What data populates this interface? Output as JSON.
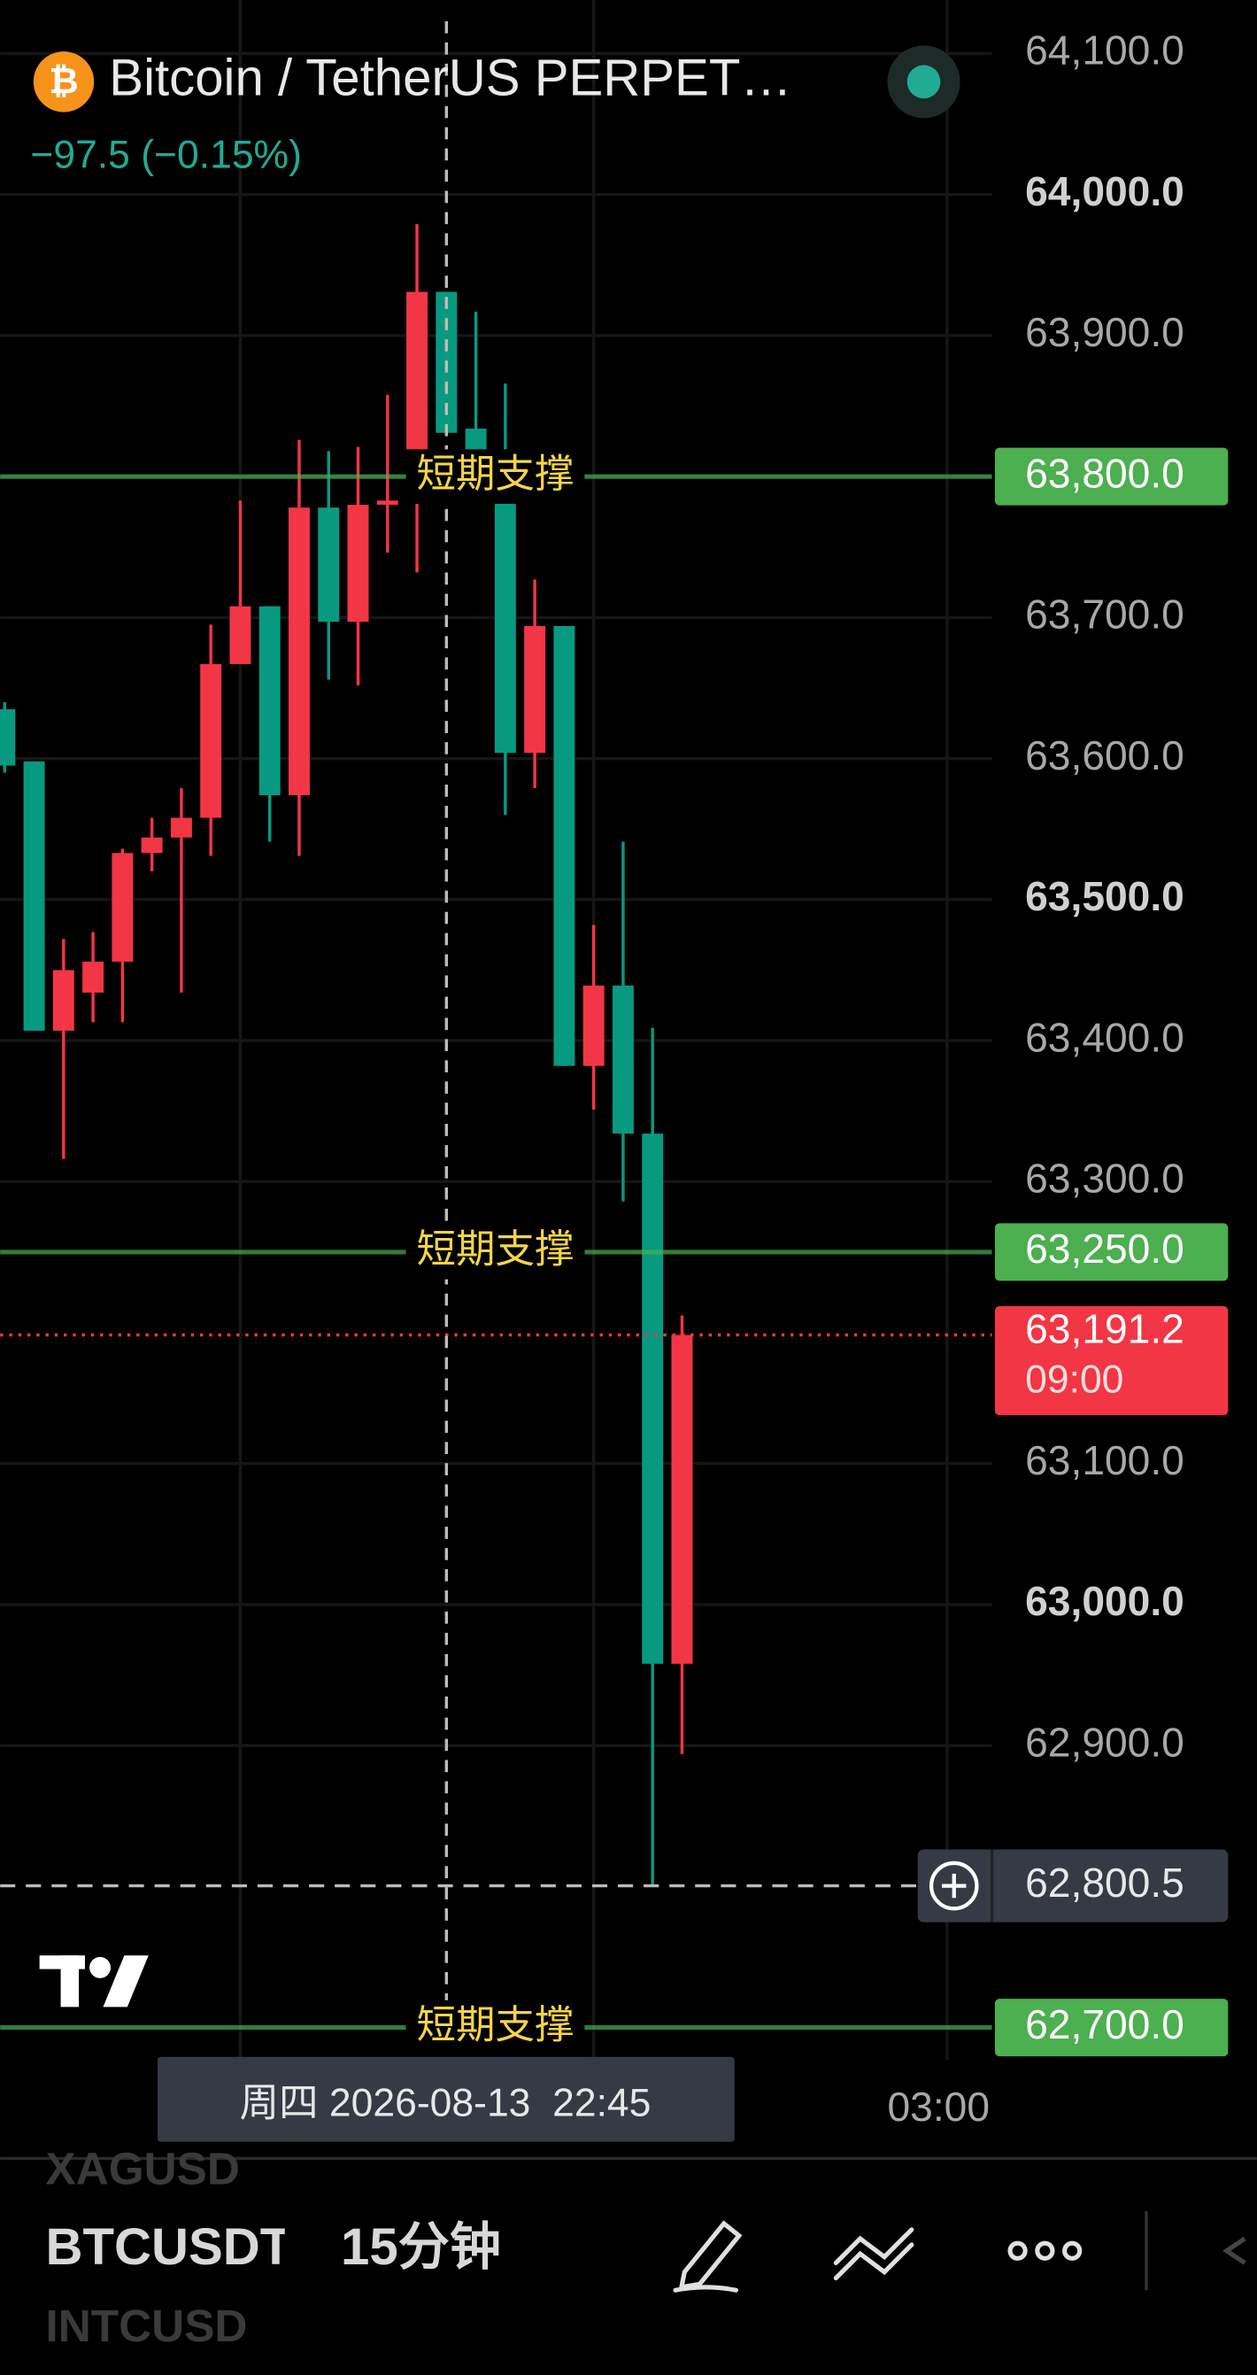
{
  "header": {
    "title": "Bitcoin / TetherUS PERPET…",
    "change": "−97.5 (−0.15%)"
  },
  "toolbar": {
    "symbol_above": "XAGUSD",
    "symbol": "BTCUSDT",
    "interval": "15分钟",
    "symbol_below": "INTCUSD"
  },
  "chart_data": {
    "type": "candlestick",
    "categories": [
      null,
      null,
      null,
      null,
      null,
      null,
      null,
      null,
      null,
      null,
      null,
      null,
      null,
      null,
      null,
      null,
      null,
      null,
      null,
      null,
      null,
      null,
      null,
      null
    ],
    "open": [
      63635,
      63598,
      63407,
      63434,
      63456,
      63533,
      63544,
      63558,
      63667,
      63708,
      63574,
      63778,
      63697,
      63780,
      63794,
      63931,
      63834,
      63810,
      63604,
      63694,
      63382,
      63439,
      63334,
      62958
    ],
    "high": [
      63640,
      63598,
      63472,
      63477,
      63536,
      63558,
      63579,
      63695,
      63783,
      63708,
      63826,
      63818,
      63821,
      63858,
      63979,
      63931,
      63917,
      63866,
      63727,
      63694,
      63482,
      63541,
      63409,
      63205
    ],
    "low": [
      63590,
      63407,
      63316,
      63413,
      63413,
      63520,
      63434,
      63531,
      63667,
      63541,
      63531,
      63656,
      63652,
      63746,
      63732,
      63831,
      63783,
      63560,
      63579,
      63382,
      63351,
      63286,
      62801,
      62894
    ],
    "close": [
      63595,
      63407,
      63450,
      63456,
      63533,
      63544,
      63558,
      63667,
      63708,
      63574,
      63778,
      63697,
      63780,
      63783,
      63931,
      63831,
      63810,
      63604,
      63694,
      63382,
      63439,
      63334,
      62958,
      63191.2
    ],
    "up_color": "#f23645",
    "down_color": "#089981",
    "ylim": [
      62677,
      64138
    ],
    "yticks": [
      {
        "value": 64100,
        "label": "64,100.0"
      },
      {
        "value": 64000,
        "label": "64,000.0"
      },
      {
        "value": 63900,
        "label": "63,900.0"
      },
      {
        "value": 63800,
        "label": "63,800.0"
      },
      {
        "value": 63700,
        "label": "63,700.0"
      },
      {
        "value": 63600,
        "label": "63,600.0"
      },
      {
        "value": 63500,
        "label": "63,500.0"
      },
      {
        "value": 63400,
        "label": "63,400.0"
      },
      {
        "value": 63300,
        "label": "63,300.0"
      },
      {
        "value": 63100,
        "label": "63,100.0"
      },
      {
        "value": 63000,
        "label": "63,000.0"
      },
      {
        "value": 62900,
        "label": "62,900.0"
      }
    ],
    "grid": true,
    "support_lines": [
      {
        "value": 63800,
        "label": "63,800.0",
        "text": "短期支撑"
      },
      {
        "value": 63250,
        "label": "63,250.0",
        "text": "短期支撑"
      },
      {
        "value": 62700,
        "label": "62,700.0",
        "text": "短期支撑"
      }
    ],
    "support_color": "#4caf50",
    "last_price": {
      "value": 63191.2,
      "label": "63,191.2",
      "countdown": "09:00"
    },
    "crosshair": {
      "index": 15,
      "value": 62800.5,
      "label": "62,800.5",
      "time_label": "周四 2026-08-13  22:45"
    },
    "time_label": "03:00"
  }
}
